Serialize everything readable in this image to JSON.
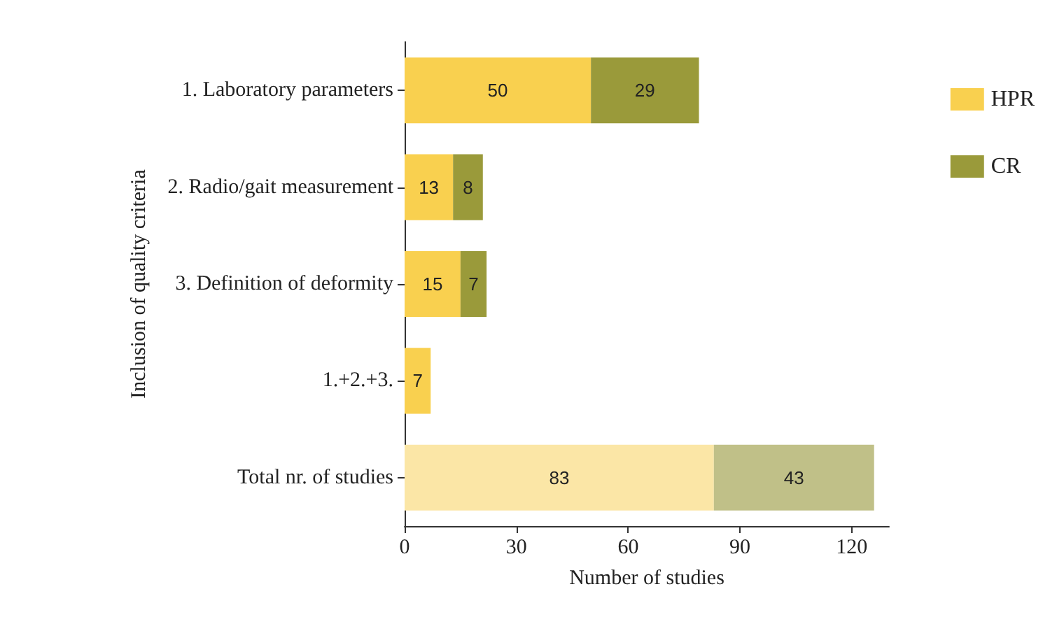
{
  "chart_data": {
    "type": "bar",
    "orientation": "horizontal",
    "stacked": true,
    "xlabel": "Number of studies",
    "ylabel": "Inclusion of quality criteria",
    "categories": [
      "1. Laboratory parameters",
      "2. Radio/gait measurement",
      "3. Definition of deformity",
      "1.+2.+3.",
      "Total nr. of studies"
    ],
    "series": [
      {
        "name": "HPR",
        "color": "#f9d04f",
        "colors": [
          "#f9d04f",
          "#f9d04f",
          "#f9d04f",
          "#f9d04f",
          "#fbe6a6"
        ],
        "values": [
          50,
          13,
          15,
          7,
          83
        ]
      },
      {
        "name": "CR",
        "color": "#9a9a3a",
        "colors": [
          "#9a9a3a",
          "#9a9a3a",
          "#9a9a3a",
          "#9a9a3a",
          "#c0c088"
        ],
        "values": [
          29,
          8,
          7,
          null,
          43
        ]
      }
    ],
    "xlim": [
      0,
      130
    ],
    "xticks": [
      0,
      30,
      60,
      90,
      120
    ],
    "grid": false,
    "legend": "top right",
    "data_labels": true
  }
}
